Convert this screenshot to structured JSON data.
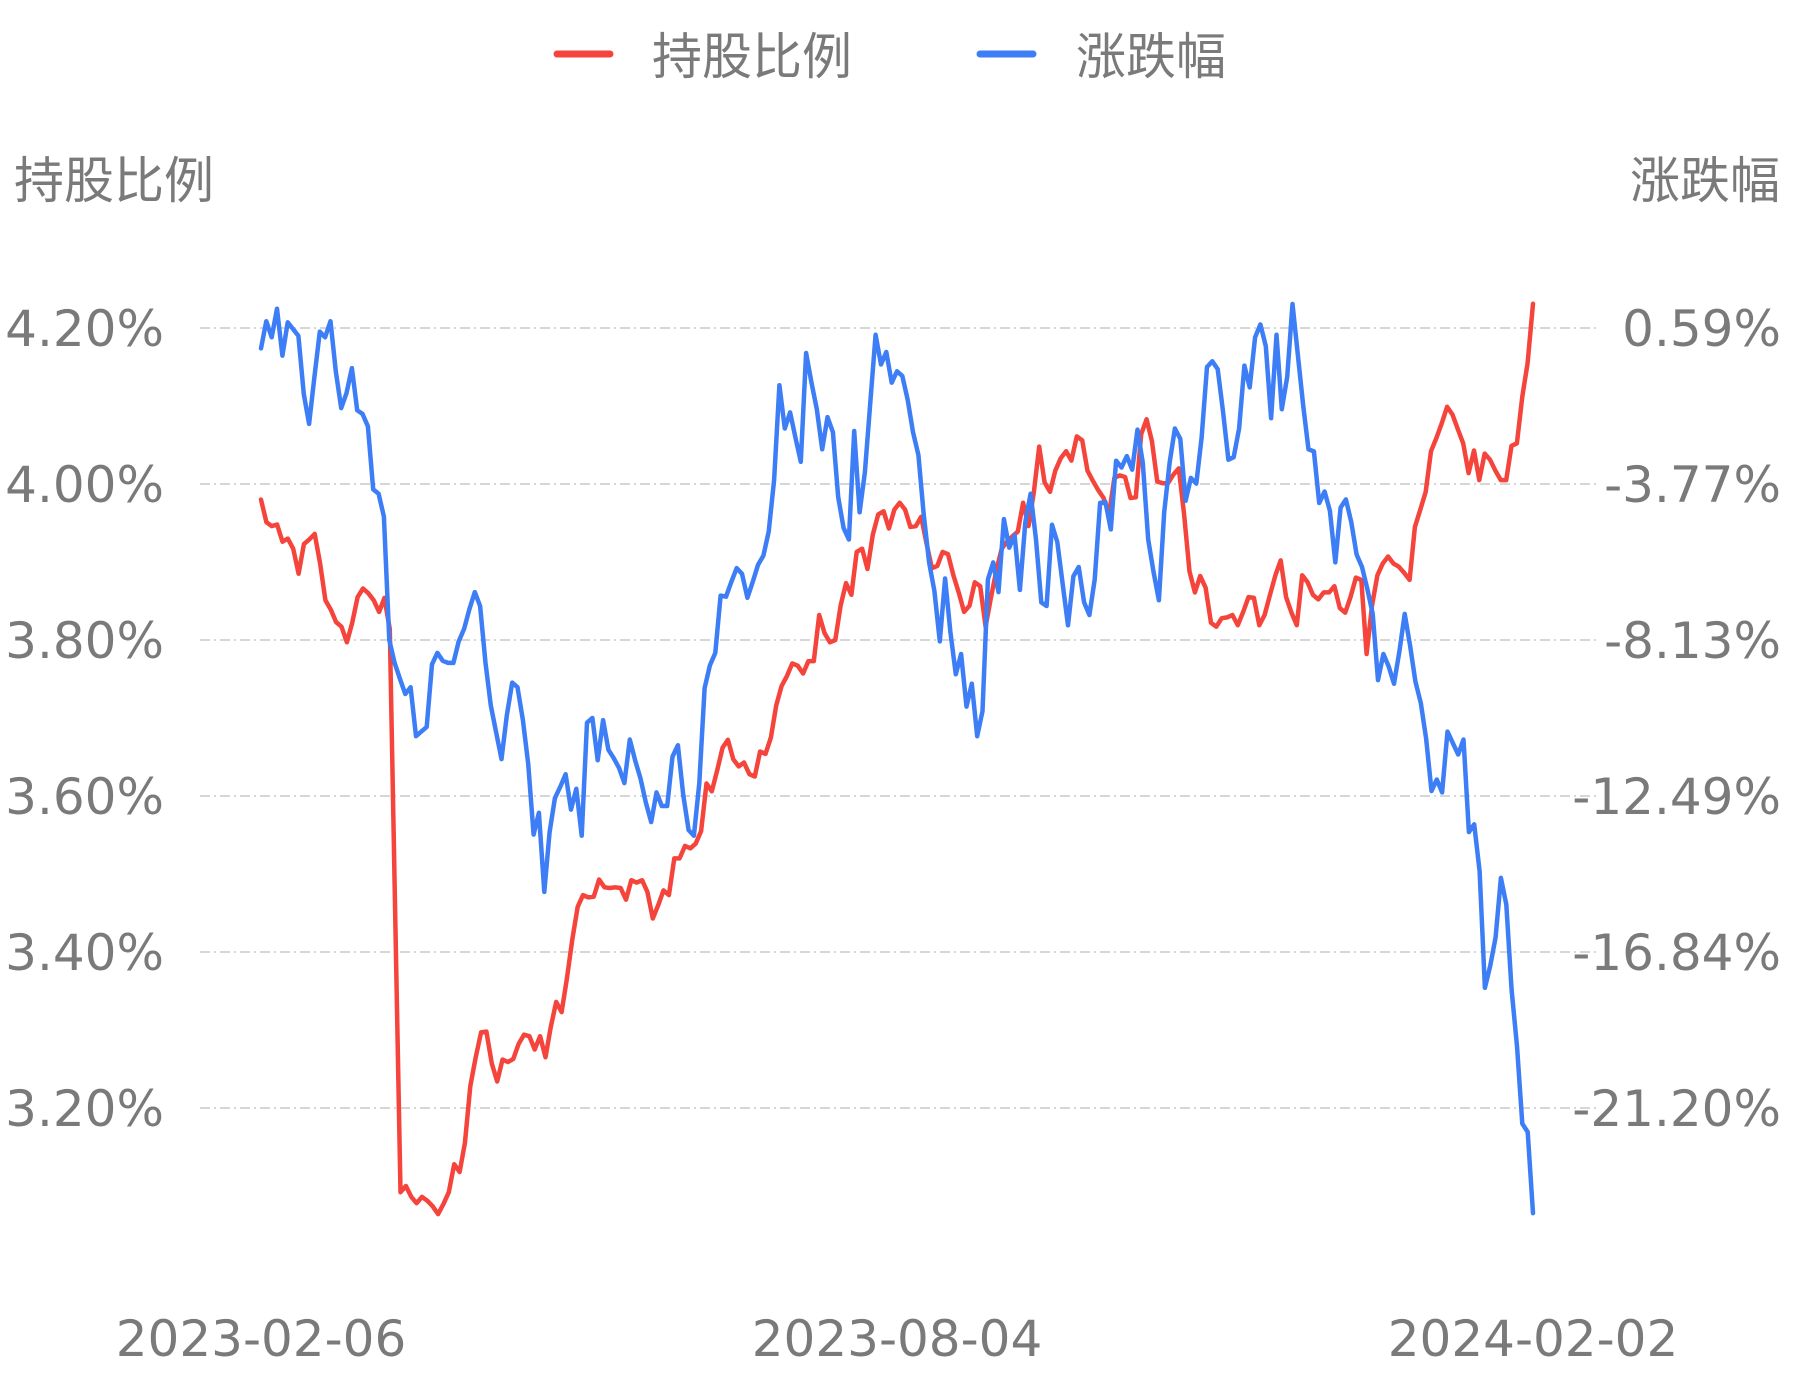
{
  "chart_data": {
    "type": "line",
    "legend": {
      "placement": "top-center",
      "items": [
        "持股比例",
        "涨跌幅"
      ]
    },
    "left_axis": {
      "label": "持股比例",
      "ticks": [
        "4.20%",
        "4.00%",
        "3.80%",
        "3.60%",
        "3.40%",
        "3.20%"
      ],
      "tick_values": [
        4.2,
        4.0,
        3.8,
        3.6,
        3.4,
        3.2
      ]
    },
    "right_axis": {
      "label": "涨跌幅",
      "ticks": [
        "0.59%",
        "-3.77%",
        "-8.13%",
        "-12.49%",
        "-16.84%",
        "-21.20%"
      ],
      "tick_values": [
        0.59,
        -3.77,
        -8.13,
        -12.49,
        -16.84,
        -21.2
      ]
    },
    "x_axis": {
      "ticks": [
        "2023-02-06",
        "2023-08-04",
        "2024-02-02"
      ],
      "range": [
        "2023-02-06",
        "2024-02-02"
      ]
    },
    "grid": true,
    "series": [
      {
        "name": "持股比例",
        "axis": "left",
        "color": "#f4443b",
        "unit": "%",
        "values": [
          3.98,
          3.951,
          3.946,
          3.948,
          3.926,
          3.93,
          3.917,
          3.885,
          3.923,
          3.929,
          3.936,
          3.899,
          3.851,
          3.839,
          3.823,
          3.817,
          3.797,
          3.822,
          3.855,
          3.866,
          3.86,
          3.851,
          3.836,
          3.854,
          3.814,
          3.448,
          3.092,
          3.1,
          3.086,
          3.078,
          3.086,
          3.081,
          3.074,
          3.064,
          3.077,
          3.092,
          3.128,
          3.118,
          3.155,
          3.228,
          3.265,
          3.297,
          3.298,
          3.257,
          3.234,
          3.262,
          3.259,
          3.263,
          3.282,
          3.294,
          3.292,
          3.275,
          3.292,
          3.265,
          3.304,
          3.336,
          3.323,
          3.366,
          3.416,
          3.458,
          3.473,
          3.47,
          3.471,
          3.493,
          3.483,
          3.482,
          3.483,
          3.482,
          3.467,
          3.492,
          3.489,
          3.492,
          3.477,
          3.443,
          3.46,
          3.479,
          3.473,
          3.52,
          3.52,
          3.536,
          3.533,
          3.539,
          3.555,
          3.616,
          3.606,
          3.633,
          3.662,
          3.672,
          3.647,
          3.638,
          3.643,
          3.628,
          3.625,
          3.657,
          3.654,
          3.675,
          3.716,
          3.741,
          3.754,
          3.77,
          3.767,
          3.757,
          3.773,
          3.773,
          3.832,
          3.809,
          3.797,
          3.8,
          3.844,
          3.873,
          3.858,
          3.913,
          3.917,
          3.891,
          3.935,
          3.961,
          3.965,
          3.943,
          3.967,
          3.976,
          3.967,
          3.945,
          3.946,
          3.958,
          3.924,
          3.892,
          3.895,
          3.913,
          3.91,
          3.883,
          3.861,
          3.836,
          3.844,
          3.874,
          3.869,
          3.817,
          3.854,
          3.889,
          3.917,
          3.926,
          3.933,
          3.939,
          3.976,
          3.946,
          3.99,
          4.048,
          4.002,
          3.99,
          4.017,
          4.033,
          4.042,
          4.03,
          4.061,
          4.056,
          4.017,
          4.004,
          3.992,
          3.982,
          3.961,
          4.008,
          4.011,
          4.009,
          3.982,
          3.983,
          4.064,
          4.083,
          4.055,
          4.003,
          4.001,
          4.001,
          4.012,
          4.02,
          3.961,
          3.888,
          3.861,
          3.882,
          3.867,
          3.822,
          3.817,
          3.828,
          3.829,
          3.832,
          3.819,
          3.836,
          3.855,
          3.854,
          3.819,
          3.832,
          3.858,
          3.883,
          3.902,
          3.855,
          3.835,
          3.819,
          3.883,
          3.874,
          3.858,
          3.852,
          3.861,
          3.861,
          3.869,
          3.841,
          3.835,
          3.855,
          3.88,
          3.877,
          3.782,
          3.844,
          3.883,
          3.898,
          3.907,
          3.898,
          3.894,
          3.886,
          3.877,
          3.945,
          3.967,
          3.99,
          4.042,
          4.059,
          4.078,
          4.099,
          4.089,
          4.07,
          4.052,
          4.014,
          4.043,
          4.005,
          4.039,
          4.031,
          4.017,
          4.005,
          4.005,
          4.049,
          4.052,
          4.112,
          4.155,
          4.231
        ]
      },
      {
        "name": "涨跌幅",
        "axis": "right",
        "color": "#3d7ef6",
        "unit": "%",
        "values": [
          0.02,
          0.78,
          0.33,
          1.13,
          -0.18,
          0.75,
          0.56,
          0.37,
          -1.26,
          -2.09,
          -0.78,
          0.49,
          0.33,
          0.78,
          -0.62,
          -1.65,
          -1.23,
          -0.53,
          -1.71,
          -1.81,
          -2.16,
          -3.92,
          -4.04,
          -4.68,
          -8.13,
          -8.77,
          -9.22,
          -9.64,
          -9.45,
          -10.82,
          -10.69,
          -10.56,
          -8.81,
          -8.49,
          -8.71,
          -8.77,
          -8.77,
          -8.17,
          -7.82,
          -7.27,
          -6.79,
          -7.18,
          -8.77,
          -9.96,
          -10.72,
          -11.46,
          -10.24,
          -9.32,
          -9.45,
          -10.37,
          -11.59,
          -13.57,
          -12.96,
          -15.17,
          -13.5,
          -12.55,
          -12.23,
          -11.88,
          -12.87,
          -12.29,
          -13.6,
          -10.44,
          -10.31,
          -11.49,
          -10.37,
          -11.2,
          -11.43,
          -11.71,
          -12.13,
          -10.91,
          -11.49,
          -12.0,
          -12.67,
          -13.22,
          -12.39,
          -12.77,
          -12.77,
          -11.39,
          -11.07,
          -12.45,
          -13.44,
          -13.6,
          -12.13,
          -9.48,
          -8.84,
          -8.49,
          -6.89,
          -6.92,
          -6.51,
          -6.12,
          -6.28,
          -6.95,
          -6.51,
          -6.03,
          -5.77,
          -5.1,
          -3.66,
          -1.01,
          -2.22,
          -1.77,
          -2.48,
          -3.15,
          -0.11,
          -0.94,
          -1.68,
          -2.8,
          -1.9,
          -2.32,
          -4.14,
          -5.0,
          -5.32,
          -2.29,
          -4.56,
          -3.44,
          -1.49,
          0.4,
          -0.43,
          -0.08,
          -0.94,
          -0.62,
          -0.75,
          -1.42,
          -2.32,
          -2.96,
          -4.62,
          -5.96,
          -6.76,
          -8.17,
          -6.41,
          -7.91,
          -9.09,
          -8.52,
          -9.99,
          -9.35,
          -10.82,
          -10.12,
          -6.44,
          -5.96,
          -6.79,
          -4.75,
          -5.55,
          -5.2,
          -6.73,
          -4.84,
          -4.04,
          -5.32,
          -7.08,
          -7.18,
          -4.91,
          -5.39,
          -6.57,
          -7.72,
          -6.35,
          -6.09,
          -7.08,
          -7.43,
          -6.44,
          -4.3,
          -4.27,
          -5.04,
          -3.12,
          -3.31,
          -2.99,
          -3.37,
          -2.25,
          -3.18,
          -5.32,
          -6.22,
          -7.02,
          -4.56,
          -3.18,
          -2.22,
          -2.51,
          -4.24,
          -3.6,
          -3.76,
          -2.48,
          -0.5,
          -0.34,
          -0.56,
          -1.74,
          -3.09,
          -3.02,
          -2.22,
          -0.46,
          -1.07,
          0.33,
          0.69,
          0.08,
          -1.93,
          0.4,
          -1.68,
          -0.78,
          1.26,
          -0.15,
          -1.58,
          -2.8,
          -2.86,
          -4.3,
          -3.98,
          -4.52,
          -5.96,
          -4.43,
          -4.2,
          -4.84,
          -5.74,
          -6.09,
          -6.7,
          -7.4,
          -9.25,
          -8.52,
          -8.87,
          -9.35,
          -8.45,
          -7.4,
          -8.29,
          -9.29,
          -9.89,
          -10.88,
          -12.35,
          -12.03,
          -12.39,
          -10.69,
          -11.01,
          -11.33,
          -10.91,
          -13.5,
          -13.28,
          -14.59,
          -17.85,
          -17.24,
          -16.44,
          -14.78,
          -15.52,
          -17.91,
          -19.48,
          -21.65,
          -21.88,
          -24.15
        ]
      }
    ]
  }
}
